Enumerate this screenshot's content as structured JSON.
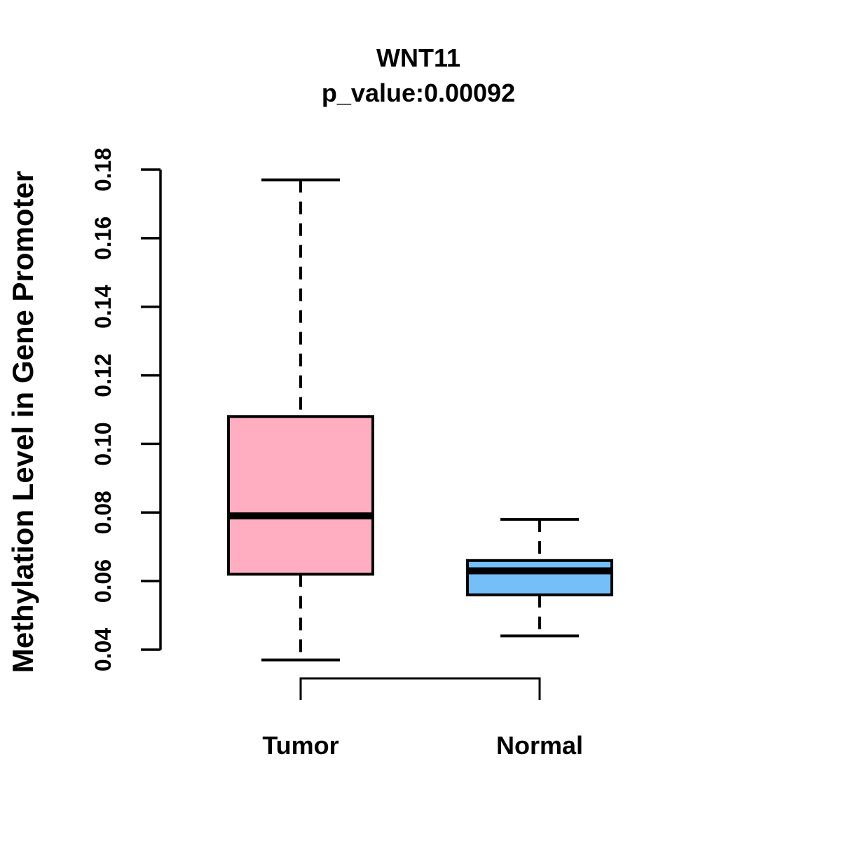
{
  "title": {
    "line1": "WNT11",
    "line2": "p_value:0.00092"
  },
  "y_axis": {
    "label": "Methylation Level in Gene Promoter",
    "ticks": [
      "0.04",
      "0.06",
      "0.08",
      "0.10",
      "0.12",
      "0.14",
      "0.16",
      "0.18"
    ]
  },
  "chart_data": {
    "type": "boxplot",
    "title": "WNT11",
    "subtitle": "p_value:0.00092",
    "ylabel": "Methylation Level in Gene Promoter",
    "ylim": [
      0.04,
      0.18
    ],
    "yticks": [
      0.04,
      0.06,
      0.08,
      0.1,
      0.12,
      0.14,
      0.16,
      0.18
    ],
    "grid": false,
    "groups": [
      {
        "label": "Tumor",
        "color": "#FFADC0",
        "whisker_low": 0.037,
        "q1": 0.062,
        "median": 0.079,
        "q3": 0.108,
        "whisker_high": 0.177
      },
      {
        "label": "Normal",
        "color": "#74BFF8",
        "whisker_low": 0.044,
        "q1": 0.056,
        "median": 0.063,
        "q3": 0.066,
        "whisker_high": 0.078
      }
    ],
    "stroke_color": "#000000",
    "background_color": "#FFFFFF"
  }
}
